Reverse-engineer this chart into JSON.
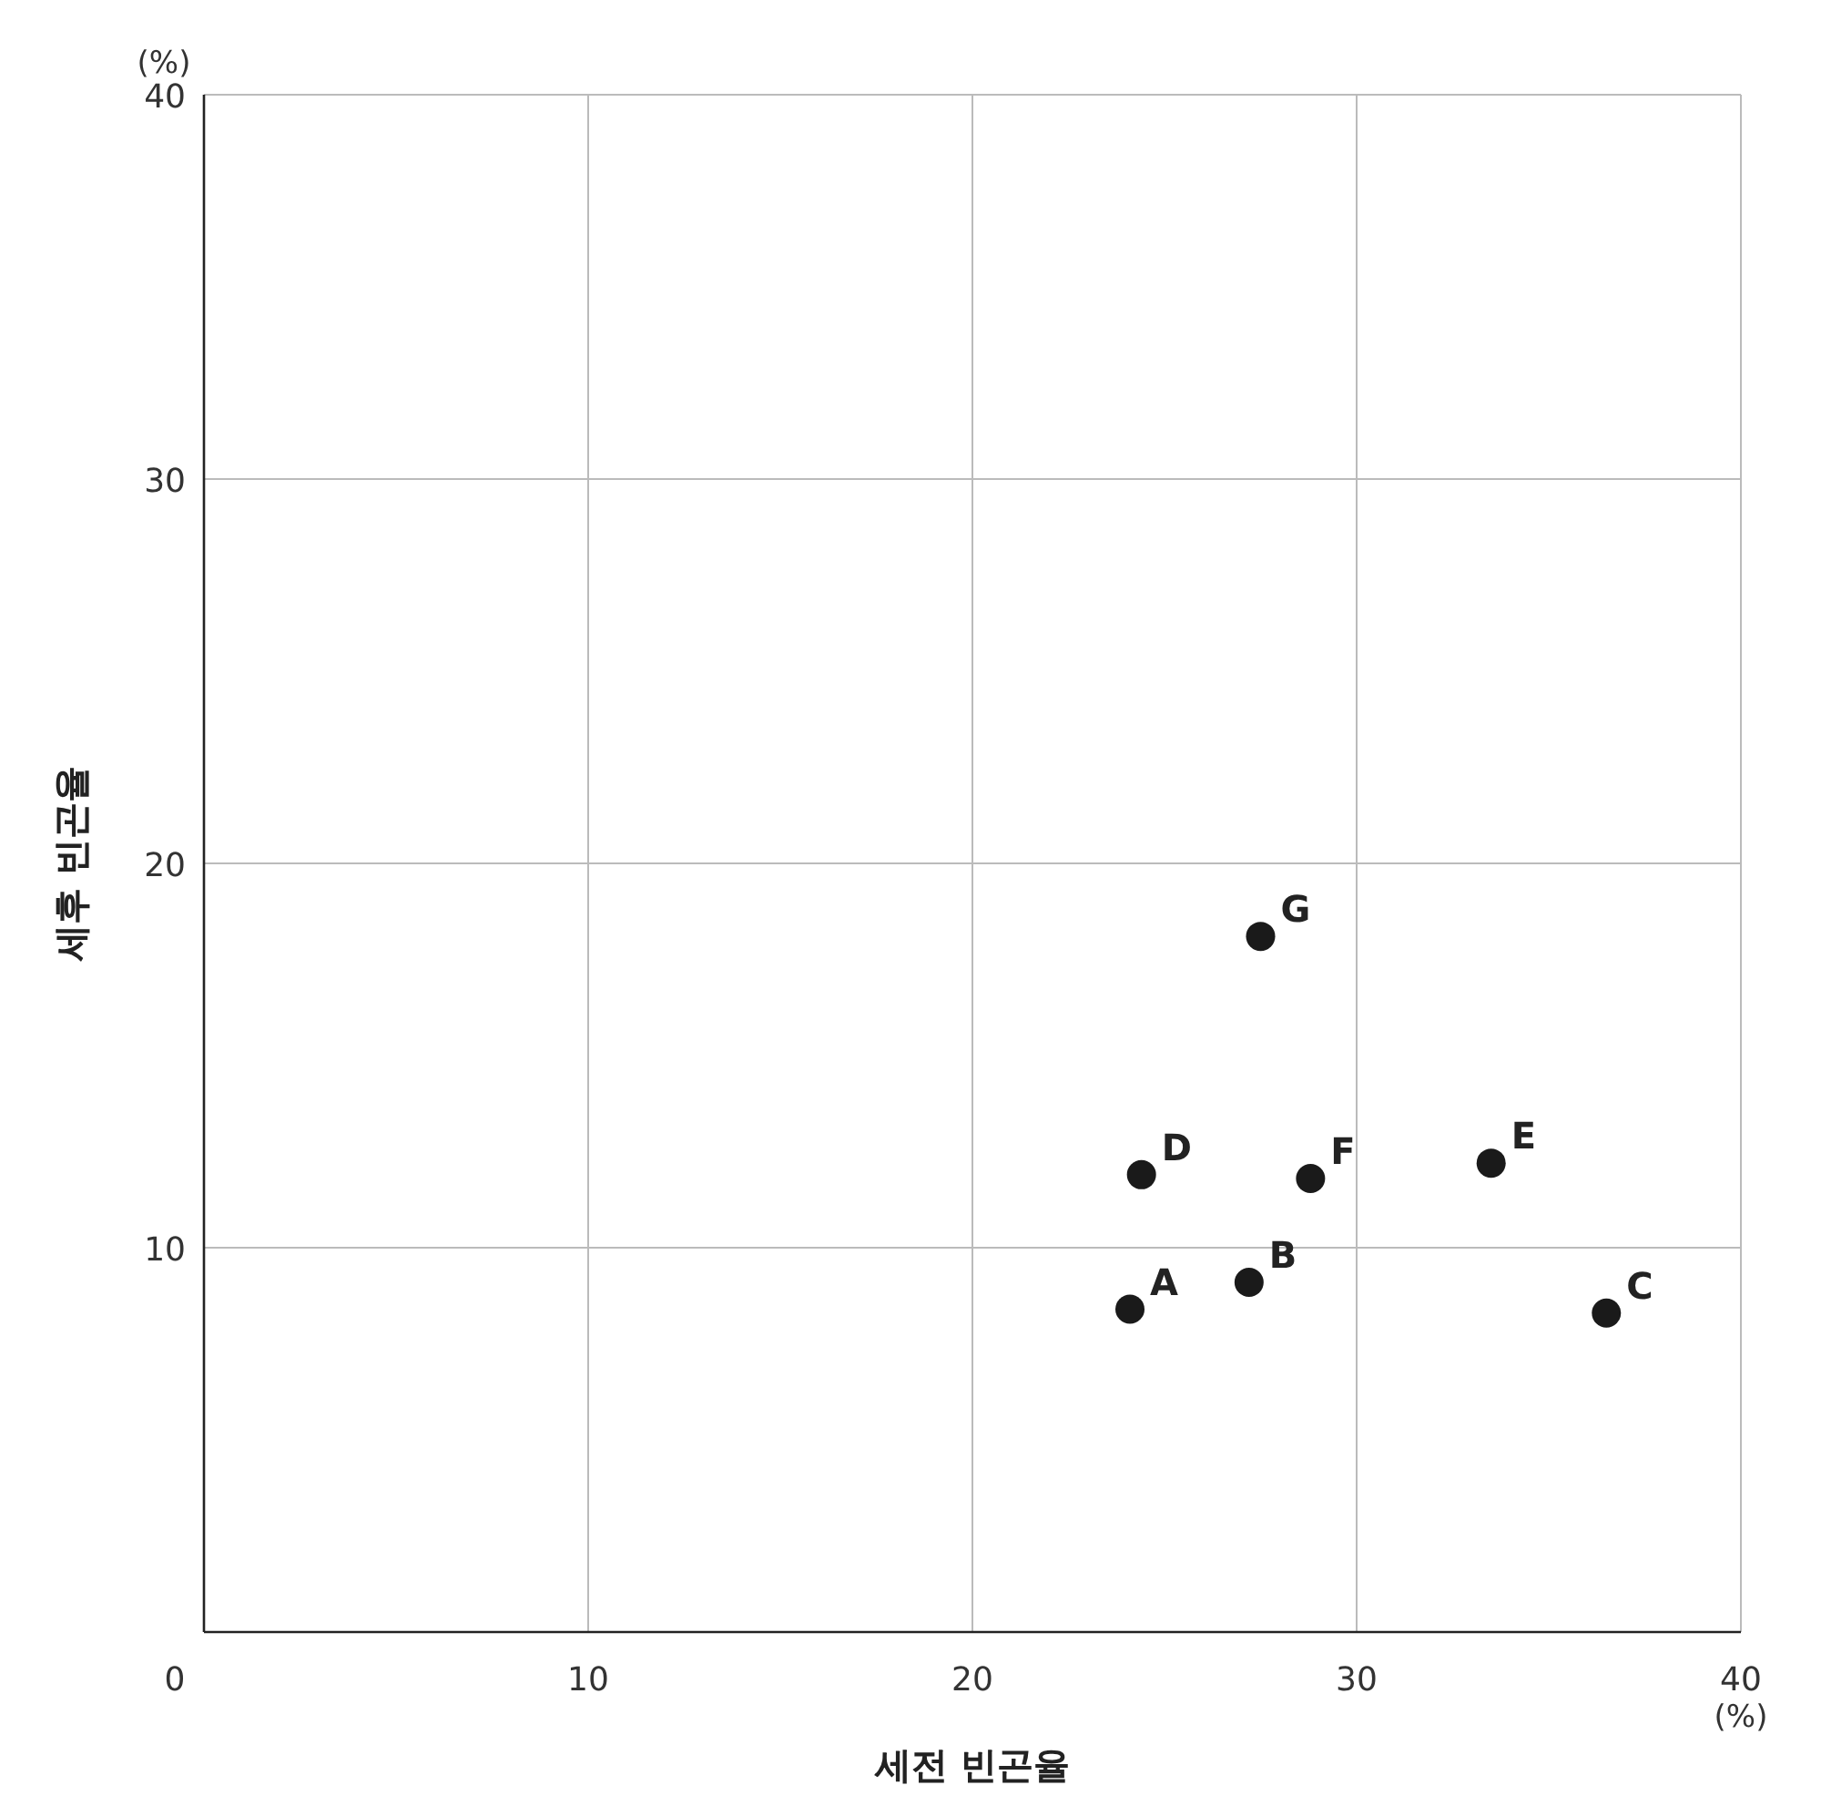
{
  "chart_data": {
    "type": "scatter",
    "xlabel": "세전 빈곤율",
    "ylabel": "세후 빈곤율",
    "x": [
      24.1,
      27.2,
      36.5,
      24.4,
      33.5,
      28.8,
      27.5
    ],
    "series": [
      {
        "color": "#1a1a1a",
        "values": [
          8.4,
          9.1,
          8.3,
          11.9,
          12.2,
          11.8,
          18.1
        ]
      }
    ],
    "xlim": [
      0,
      40
    ],
    "ylim": [
      0,
      40
    ],
    "xticks": [
      0,
      10,
      20,
      30,
      40
    ],
    "yticks": [
      10,
      20,
      30,
      40
    ],
    "grid": true,
    "marker": "circle",
    "annotations": [
      "(%)",
      "(%)",
      {
        "text": "A",
        "x": 24.1,
        "y": 8.4
      },
      {
        "text": "B",
        "x": 27.2,
        "y": 9.1
      },
      {
        "text": "C",
        "x": 36.5,
        "y": 8.3
      },
      {
        "text": "D",
        "x": 24.4,
        "y": 11.9
      },
      {
        "text": "E",
        "x": 33.5,
        "y": 12.2
      },
      {
        "text": "F",
        "x": 28.8,
        "y": 11.8
      },
      {
        "text": "G",
        "x": 27.5,
        "y": 18.1
      }
    ]
  }
}
